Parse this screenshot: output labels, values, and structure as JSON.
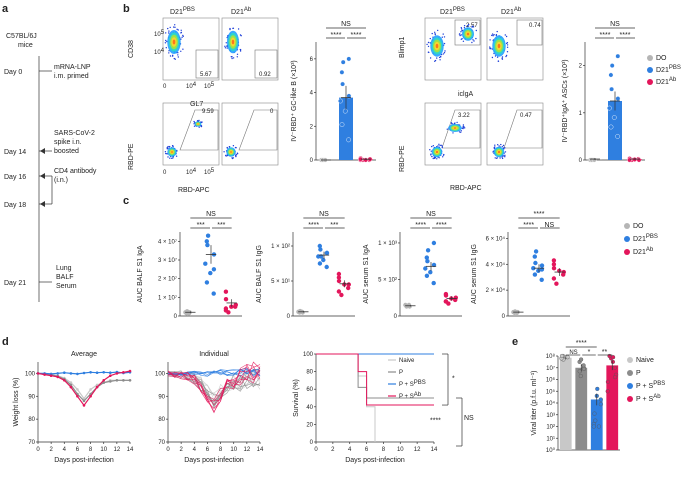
{
  "panel_labels": {
    "a": "a",
    "b": "b",
    "c": "c",
    "d": "d",
    "e": "e"
  },
  "timeline": {
    "mouse": [
      "C57BL/6J",
      "mice"
    ],
    "steps": [
      {
        "day": "Day 0",
        "desc": [
          "mRNA-LNP",
          "i.m. primed"
        ]
      },
      {
        "day": "Day 14",
        "desc": [
          "SARS-CoV-2",
          "spike i.n.",
          "boosted"
        ]
      },
      {
        "day": "Day 16",
        "desc": [
          "CD4 antibody",
          "(i.n.)"
        ]
      },
      {
        "day": "Day 18",
        "desc": []
      },
      {
        "day": "Day 21",
        "desc": [
          "Lung",
          "BALF",
          "Serum"
        ]
      }
    ]
  },
  "colors": {
    "do": "#b5b5b5",
    "pbs": "#2f7fe0",
    "ab": "#e3165b",
    "gray": "#8c8c8c",
    "naive": "#c8c8c8"
  },
  "flow_b": {
    "col_pbs": "D21",
    "col_ab": "D21",
    "sup_pbs": "PBS",
    "sup_ab": "Ab",
    "gc_y": "CD38",
    "gc_x": "GL7",
    "gc_pbs_pct": "5.67",
    "gc_ab_pct": "0.92",
    "rbd_y": "RBD-PE",
    "rbd_x": "RBD-APC",
    "rbd_pbs_pct": "9.59",
    "rbd_ab_pct": "0",
    "asc_y": "Blimp1",
    "asc_x": "iclgA",
    "asc_pbs_pct": "2.57",
    "asc_ab_pct": "0.74",
    "asc_rbd_y": "RBD-PE",
    "asc_rbd_x": "RBD-APC",
    "asc_rbd_pbs_pct": "3.22",
    "asc_rbd_ab_pct": "0.47",
    "ticks_x": [
      "0",
      "10",
      "10",
      "0",
      "10",
      "10"
    ],
    "tick_exps": [
      "4",
      "5"
    ]
  },
  "bar_gc": {
    "ylabel": "IV⁻RBD⁺ GC-like B (×10³)",
    "yticks": [
      "0",
      "2",
      "4",
      "6"
    ],
    "sig_top": "NS",
    "sig_l": "****",
    "sig_r": "****",
    "means": [
      0.0,
      3.7,
      0.05
    ],
    "errs": [
      0,
      0.7,
      0.05
    ],
    "points": [
      [
        0,
        0,
        0,
        0,
        0
      ],
      [
        1.2,
        2.1,
        2.9,
        3.5,
        3.8,
        4.5,
        5.2,
        5.8,
        6.0
      ],
      [
        0,
        0,
        0,
        0.05,
        0.1,
        0,
        0.05,
        0
      ]
    ],
    "ymax": 7
  },
  "bar_asc": {
    "ylabel": "IV⁻RBD⁺IgA⁺ ASCs (×10³)",
    "yticks": [
      "0",
      "1",
      "2"
    ],
    "sig_top": "NS",
    "sig_l": "****",
    "sig_r": "****",
    "means": [
      0.02,
      1.25,
      0.02
    ],
    "errs": [
      0.02,
      0.2,
      0.02
    ],
    "points": [
      [
        0,
        0,
        0,
        0,
        0
      ],
      [
        0.5,
        0.7,
        0.9,
        1.1,
        1.3,
        1.5,
        1.8,
        2.0,
        2.2
      ],
      [
        0,
        0,
        0.02,
        0,
        0.03,
        0,
        0,
        0.01
      ]
    ],
    "ymax": 2.5
  },
  "legend_b": {
    "items": [
      "DO",
      "D21",
      "D21"
    ],
    "sups": [
      "",
      "PBS",
      "Ab"
    ]
  },
  "auc": [
    {
      "ylabel": "AUC BALF S1 IgA",
      "yticks": [
        "0",
        "1 × 10⁷",
        "2 × 10⁷",
        "3 × 10⁷",
        "4 × 10⁷"
      ],
      "ymax": 4.5,
      "sig_top": "NS",
      "sig_l": "***",
      "sig_r": "***",
      "means": [
        0.2,
        3.3,
        0.7
      ],
      "errs": [
        0.05,
        0.5,
        0.2
      ],
      "points": [
        [
          0.15,
          0.2,
          0.2,
          0.25,
          0.2,
          0.15
        ],
        [
          1.2,
          1.8,
          2.3,
          2.8,
          3.3,
          3.8,
          4.0,
          4.3,
          2.5
        ],
        [
          0.2,
          0.4,
          0.5,
          0.6,
          0.9,
          1.3,
          0.3,
          0.5
        ]
      ]
    },
    {
      "ylabel": "AUC BALF S1 IgG",
      "yticks": [
        "0",
        "5 × 10¹",
        "1 × 10²"
      ],
      "ymax": 1.2,
      "sig_top": "NS",
      "sig_l": "****",
      "sig_r": "***",
      "means": [
        0.06,
        0.87,
        0.46
      ],
      "errs": [
        0.01,
        0.05,
        0.05
      ],
      "points": [
        [
          0.05,
          0.06,
          0.06,
          0.07,
          0.05,
          0.06
        ],
        [
          0.7,
          0.75,
          0.8,
          0.85,
          0.9,
          0.95,
          1.0,
          0.85,
          0.9
        ],
        [
          0.3,
          0.35,
          0.4,
          0.45,
          0.5,
          0.55,
          0.6,
          0.45
        ]
      ]
    },
    {
      "ylabel": "AUC serum S1 IgA",
      "yticks": [
        "0",
        "5 × 10²",
        "1 × 10³"
      ],
      "ymax": 1.15,
      "sig_top": "NS",
      "sig_l": "****",
      "sig_r": "****",
      "means": [
        0.14,
        0.68,
        0.24
      ],
      "errs": [
        0.01,
        0.06,
        0.03
      ],
      "points": [
        [
          0.13,
          0.14,
          0.15,
          0.14,
          0.13,
          0.15
        ],
        [
          0.45,
          0.55,
          0.6,
          0.65,
          0.7,
          0.75,
          0.8,
          0.9,
          1.0
        ],
        [
          0.17,
          0.2,
          0.22,
          0.25,
          0.28,
          0.3,
          0.2,
          0.24
        ]
      ]
    },
    {
      "ylabel": "AUC serum S1 IgG",
      "yticks": [
        "0",
        "2 × 10⁴",
        "4 × 10⁴",
        "6 × 10⁴"
      ],
      "ymax": 6.5,
      "sig_top": "****",
      "sig_l": "****",
      "sig_r": "NS",
      "means": [
        0.3,
        3.7,
        3.4
      ],
      "errs": [
        0.05,
        0.3,
        0.3
      ],
      "points": [
        [
          0.25,
          0.3,
          0.3,
          0.35,
          0.3,
          0.25
        ],
        [
          2.8,
          3.2,
          3.5,
          3.7,
          3.9,
          4.1,
          4.6,
          5.0,
          3.6
        ],
        [
          2.5,
          2.9,
          3.2,
          3.4,
          3.7,
          4.0,
          4.3,
          3.5
        ]
      ]
    }
  ],
  "legend_c": {
    "items": [
      "DO",
      "D21",
      "D21"
    ],
    "sups": [
      "",
      "PBS",
      "Ab"
    ]
  },
  "weight": {
    "titles": [
      "Average",
      "Individual"
    ],
    "ylabel": "Weight loss (%)",
    "xlabel": "Days post-infection",
    "xticks": [
      "0",
      "2",
      "4",
      "6",
      "8",
      "10",
      "12",
      "14"
    ],
    "yticks": [
      "70",
      "80",
      "90",
      "100"
    ],
    "avg_x": [
      0,
      1,
      2,
      3,
      4,
      5,
      6,
      7,
      8,
      9,
      10,
      11,
      12,
      13,
      14
    ],
    "series": [
      {
        "name": "Naive",
        "values": [
          100,
          99.7,
          99.5,
          99,
          98,
          96,
          93,
          89,
          93,
          95,
          96,
          97,
          97,
          97,
          97
        ]
      },
      {
        "name": "P",
        "values": [
          100,
          99.6,
          99.4,
          98.8,
          97.5,
          95,
          91,
          88,
          91,
          94,
          96,
          96.5,
          97,
          97,
          97
        ]
      },
      {
        "name": "P + S PBS",
        "values": [
          100,
          100,
          99.8,
          100,
          100.3,
          100,
          99.8,
          100.2,
          100.5,
          100.3,
          100.5,
          100.3,
          100.6,
          100.2,
          100.5
        ]
      },
      {
        "name": "P + S Ab",
        "values": [
          100,
          99.5,
          99,
          98.5,
          97,
          94,
          90,
          86,
          90,
          94,
          97,
          99,
          100,
          100.5,
          101
        ]
      }
    ]
  },
  "survival": {
    "ylabel": "Survival (%)",
    "xlabel": "Days post-infection",
    "xticks": [
      "0",
      "2",
      "4",
      "6",
      "8",
      "10",
      "12",
      "14"
    ],
    "yticks": [
      "0",
      "20",
      "40",
      "60",
      "80",
      "100"
    ],
    "legend": [
      "Naive",
      "P",
      "P + S",
      "P + S"
    ],
    "legend_sups": [
      "",
      "",
      "PBS",
      "Ab"
    ],
    "curves": [
      {
        "name": "Naive",
        "steps": [
          [
            0,
            100
          ],
          [
            5,
            100
          ],
          [
            5,
            75
          ],
          [
            6,
            75
          ],
          [
            6,
            40
          ],
          [
            7,
            40
          ],
          [
            7,
            0
          ]
        ]
      },
      {
        "name": "P",
        "steps": [
          [
            0,
            100
          ],
          [
            5,
            100
          ],
          [
            5,
            62
          ],
          [
            6,
            62
          ],
          [
            6,
            50
          ],
          [
            14,
            50
          ]
        ]
      },
      {
        "name": "P + S PBS",
        "steps": [
          [
            0,
            100
          ],
          [
            14,
            100
          ]
        ]
      },
      {
        "name": "P + S Ab",
        "steps": [
          [
            0,
            100
          ],
          [
            5,
            100
          ],
          [
            5,
            80
          ],
          [
            6,
            80
          ],
          [
            6,
            42
          ],
          [
            14,
            42
          ]
        ]
      }
    ],
    "sig": [
      "*",
      "****",
      "NS"
    ]
  },
  "viral": {
    "ylabel": "Viral titer (p.f.u. ml⁻¹)",
    "yticks": [
      "10⁰",
      "10¹",
      "10²",
      "10³",
      "10⁴",
      "10⁵",
      "10⁶",
      "10⁷",
      "10⁸"
    ],
    "legend": [
      "Naive",
      "P",
      "P + S",
      "P + S"
    ],
    "legend_sups": [
      "",
      "",
      "PBS",
      "Ab"
    ],
    "means_log": [
      7.85,
      7.0,
      4.3,
      7.2
    ],
    "errs_log": [
      0.1,
      0.3,
      0.5,
      0.4
    ],
    "points_log": [
      [
        7.8,
        7.9,
        8.0,
        7.7,
        7.9,
        7.8,
        8.0
      ],
      [
        6.3,
        6.7,
        7.0,
        7.2,
        7.5,
        7.7,
        6.9
      ],
      [
        2.0,
        2.2,
        2.5,
        3.1,
        3.9,
        4.3,
        4.6,
        5.2,
        2.0
      ],
      [
        5.0,
        5.8,
        6.4,
        7.0,
        7.5,
        7.8,
        8.0,
        7.9,
        6.2
      ]
    ],
    "sig": [
      "****",
      "NS",
      "*",
      "**"
    ]
  }
}
